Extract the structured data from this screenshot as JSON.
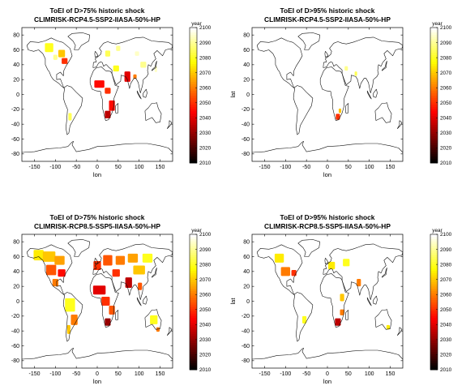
{
  "chart_data": [
    {
      "type": "heatmap",
      "title": "ToEI of D>75% historic shock",
      "subtitle": "CLIMRISK-RCP4.5-SSP2-IIASA-50%-HP",
      "xlabel": "lon",
      "ylabel": "",
      "xlim": [
        -180,
        180
      ],
      "ylim": [
        -90,
        90
      ],
      "xticks": [
        -150,
        -100,
        -50,
        0,
        50,
        100,
        150
      ],
      "yticks": [
        -80,
        -60,
        -40,
        -20,
        0,
        20,
        40,
        60,
        80
      ],
      "colorbar": {
        "label": "year",
        "range": [
          2010,
          2100
        ],
        "ticks": [
          2010,
          2020,
          2030,
          2040,
          2050,
          2060,
          2070,
          2080,
          2090,
          2100
        ],
        "colormap": "hot"
      },
      "regions": [
        {
          "lon": -115,
          "lat": 63,
          "w": 20,
          "h": 12,
          "year": 2080
        },
        {
          "lon": -85,
          "lat": 55,
          "w": 16,
          "h": 10,
          "year": 2070
        },
        {
          "lon": -78,
          "lat": 45,
          "w": 14,
          "h": 8,
          "year": 2050
        },
        {
          "lon": -100,
          "lat": 50,
          "w": 10,
          "h": 7,
          "year": 2090
        },
        {
          "lon": -65,
          "lat": -30,
          "w": 8,
          "h": 10,
          "year": 2085
        },
        {
          "lon": 25,
          "lat": 55,
          "w": 12,
          "h": 8,
          "year": 2085
        },
        {
          "lon": 50,
          "lat": 62,
          "w": 10,
          "h": 7,
          "year": 2090
        },
        {
          "lon": 95,
          "lat": 55,
          "w": 10,
          "h": 6,
          "year": 2095
        },
        {
          "lon": 110,
          "lat": 40,
          "w": 14,
          "h": 8,
          "year": 2090
        },
        {
          "lon": 45,
          "lat": 35,
          "w": 14,
          "h": 8,
          "year": 2080
        },
        {
          "lon": 72,
          "lat": 24,
          "w": 14,
          "h": 14,
          "year": 2040
        },
        {
          "lon": 90,
          "lat": 24,
          "w": 8,
          "h": 6,
          "year": 2060
        },
        {
          "lon": 5,
          "lat": 14,
          "w": 24,
          "h": 10,
          "year": 2045
        },
        {
          "lon": 25,
          "lat": 5,
          "w": 14,
          "h": 8,
          "year": 2050
        },
        {
          "lon": 35,
          "lat": -15,
          "w": 14,
          "h": 14,
          "year": 2045
        },
        {
          "lon": 25,
          "lat": -27,
          "w": 14,
          "h": 10,
          "year": 2035
        },
        {
          "lon": 140,
          "lat": 34,
          "w": 6,
          "h": 8,
          "year": 2095
        }
      ]
    },
    {
      "type": "heatmap",
      "title": "ToEI of D>95% historic shock",
      "subtitle": "CLIMRISK-RCP4.5-SSP2-IIASA-50%-HP",
      "xlabel": "lon",
      "ylabel": "lat",
      "xlim": [
        -180,
        180
      ],
      "ylim": [
        -90,
        90
      ],
      "xticks": [
        -150,
        -100,
        -50,
        0,
        50,
        100,
        150
      ],
      "yticks": [
        -80,
        -60,
        -40,
        -20,
        0,
        20,
        40,
        60,
        80
      ],
      "colorbar": {
        "label": "year",
        "range": [
          2010,
          2100
        ],
        "ticks": [
          2010,
          2020,
          2030,
          2040,
          2050,
          2060,
          2070,
          2080,
          2090,
          2100
        ],
        "colormap": "hot"
      },
      "regions": [
        {
          "lon": 45,
          "lat": 35,
          "w": 8,
          "h": 6,
          "year": 2090
        },
        {
          "lon": 68,
          "lat": 28,
          "w": 6,
          "h": 6,
          "year": 2085
        },
        {
          "lon": 25,
          "lat": -30,
          "w": 10,
          "h": 8,
          "year": 2050
        },
        {
          "lon": 30,
          "lat": -22,
          "w": 6,
          "h": 6,
          "year": 2070
        }
      ]
    },
    {
      "type": "heatmap",
      "title": "ToEI of D>75% historic shock",
      "subtitle": "CLIMRISK-RCP8.5-SSP5-IIASA-50%-HP",
      "xlabel": "lon",
      "ylabel": "",
      "xlim": [
        -180,
        180
      ],
      "ylim": [
        -90,
        90
      ],
      "xticks": [
        -150,
        -100,
        -50,
        0,
        50,
        100,
        150
      ],
      "yticks": [
        -80,
        -60,
        -40,
        -20,
        0,
        20,
        40,
        60,
        80
      ],
      "colorbar": {
        "label": "year",
        "range": [
          2010,
          2100
        ],
        "ticks": [
          2010,
          2020,
          2030,
          2040,
          2050,
          2060,
          2070,
          2080,
          2090,
          2100
        ],
        "colormap": "hot"
      },
      "regions": [
        {
          "lon": -140,
          "lat": 62,
          "w": 24,
          "h": 14,
          "year": 2075
        },
        {
          "lon": -115,
          "lat": 60,
          "w": 30,
          "h": 14,
          "year": 2070
        },
        {
          "lon": -90,
          "lat": 55,
          "w": 24,
          "h": 12,
          "year": 2065
        },
        {
          "lon": -110,
          "lat": 42,
          "w": 24,
          "h": 14,
          "year": 2055
        },
        {
          "lon": -85,
          "lat": 38,
          "w": 18,
          "h": 10,
          "year": 2045
        },
        {
          "lon": -100,
          "lat": 25,
          "w": 14,
          "h": 10,
          "year": 2060
        },
        {
          "lon": -65,
          "lat": -5,
          "w": 24,
          "h": 18,
          "year": 2080
        },
        {
          "lon": -55,
          "lat": -25,
          "w": 16,
          "h": 14,
          "year": 2060
        },
        {
          "lon": -68,
          "lat": -38,
          "w": 8,
          "h": 12,
          "year": 2070
        },
        {
          "lon": 0,
          "lat": 48,
          "w": 18,
          "h": 12,
          "year": 2050
        },
        {
          "lon": 25,
          "lat": 55,
          "w": 22,
          "h": 14,
          "year": 2055
        },
        {
          "lon": 55,
          "lat": 55,
          "w": 22,
          "h": 12,
          "year": 2060
        },
        {
          "lon": 85,
          "lat": 58,
          "w": 24,
          "h": 12,
          "year": 2065
        },
        {
          "lon": 120,
          "lat": 58,
          "w": 24,
          "h": 12,
          "year": 2080
        },
        {
          "lon": 100,
          "lat": 42,
          "w": 28,
          "h": 12,
          "year": 2070
        },
        {
          "lon": 45,
          "lat": 38,
          "w": 18,
          "h": 10,
          "year": 2050
        },
        {
          "lon": 75,
          "lat": 25,
          "w": 16,
          "h": 14,
          "year": 2035
        },
        {
          "lon": 102,
          "lat": 20,
          "w": 10,
          "h": 10,
          "year": 2055
        },
        {
          "lon": 5,
          "lat": 15,
          "w": 30,
          "h": 12,
          "year": 2040
        },
        {
          "lon": 20,
          "lat": 0,
          "w": 20,
          "h": 12,
          "year": 2050
        },
        {
          "lon": 35,
          "lat": -12,
          "w": 14,
          "h": 12,
          "year": 2055
        },
        {
          "lon": 25,
          "lat": -28,
          "w": 14,
          "h": 10,
          "year": 2030
        },
        {
          "lon": 135,
          "lat": -25,
          "w": 18,
          "h": 12,
          "year": 2080
        },
        {
          "lon": 145,
          "lat": -38,
          "w": 8,
          "h": 6,
          "year": 2060
        }
      ]
    },
    {
      "type": "heatmap",
      "title": "ToEI of D>95% historic shock",
      "subtitle": "CLIMRISK-RCP8.5-SSP5-IIASA-50%-HP",
      "xlabel": "lon",
      "ylabel": "lat",
      "xlim": [
        -180,
        180
      ],
      "ylim": [
        -90,
        90
      ],
      "xticks": [
        -150,
        -100,
        -50,
        0,
        50,
        100,
        150
      ],
      "yticks": [
        -80,
        -60,
        -40,
        -20,
        0,
        20,
        40,
        60,
        80
      ],
      "colorbar": {
        "label": "year",
        "range": [
          2010,
          2100
        ],
        "ticks": [
          2010,
          2020,
          2030,
          2040,
          2050,
          2060,
          2070,
          2080,
          2090,
          2100
        ],
        "colormap": "hot"
      },
      "regions": [
        {
          "lon": -115,
          "lat": 58,
          "w": 22,
          "h": 12,
          "year": 2075
        },
        {
          "lon": -100,
          "lat": 40,
          "w": 22,
          "h": 12,
          "year": 2060
        },
        {
          "lon": -80,
          "lat": 38,
          "w": 12,
          "h": 8,
          "year": 2050
        },
        {
          "lon": -55,
          "lat": -25,
          "w": 10,
          "h": 10,
          "year": 2080
        },
        {
          "lon": 10,
          "lat": 48,
          "w": 16,
          "h": 10,
          "year": 2075
        },
        {
          "lon": 45,
          "lat": 52,
          "w": 16,
          "h": 10,
          "year": 2080
        },
        {
          "lon": 75,
          "lat": 25,
          "w": 10,
          "h": 10,
          "year": 2060
        },
        {
          "lon": 35,
          "lat": 5,
          "w": 10,
          "h": 10,
          "year": 2070
        },
        {
          "lon": 25,
          "lat": -28,
          "w": 14,
          "h": 10,
          "year": 2035
        },
        {
          "lon": 35,
          "lat": -15,
          "w": 10,
          "h": 8,
          "year": 2060
        },
        {
          "lon": 145,
          "lat": -35,
          "w": 8,
          "h": 6,
          "year": 2075
        }
      ]
    }
  ]
}
